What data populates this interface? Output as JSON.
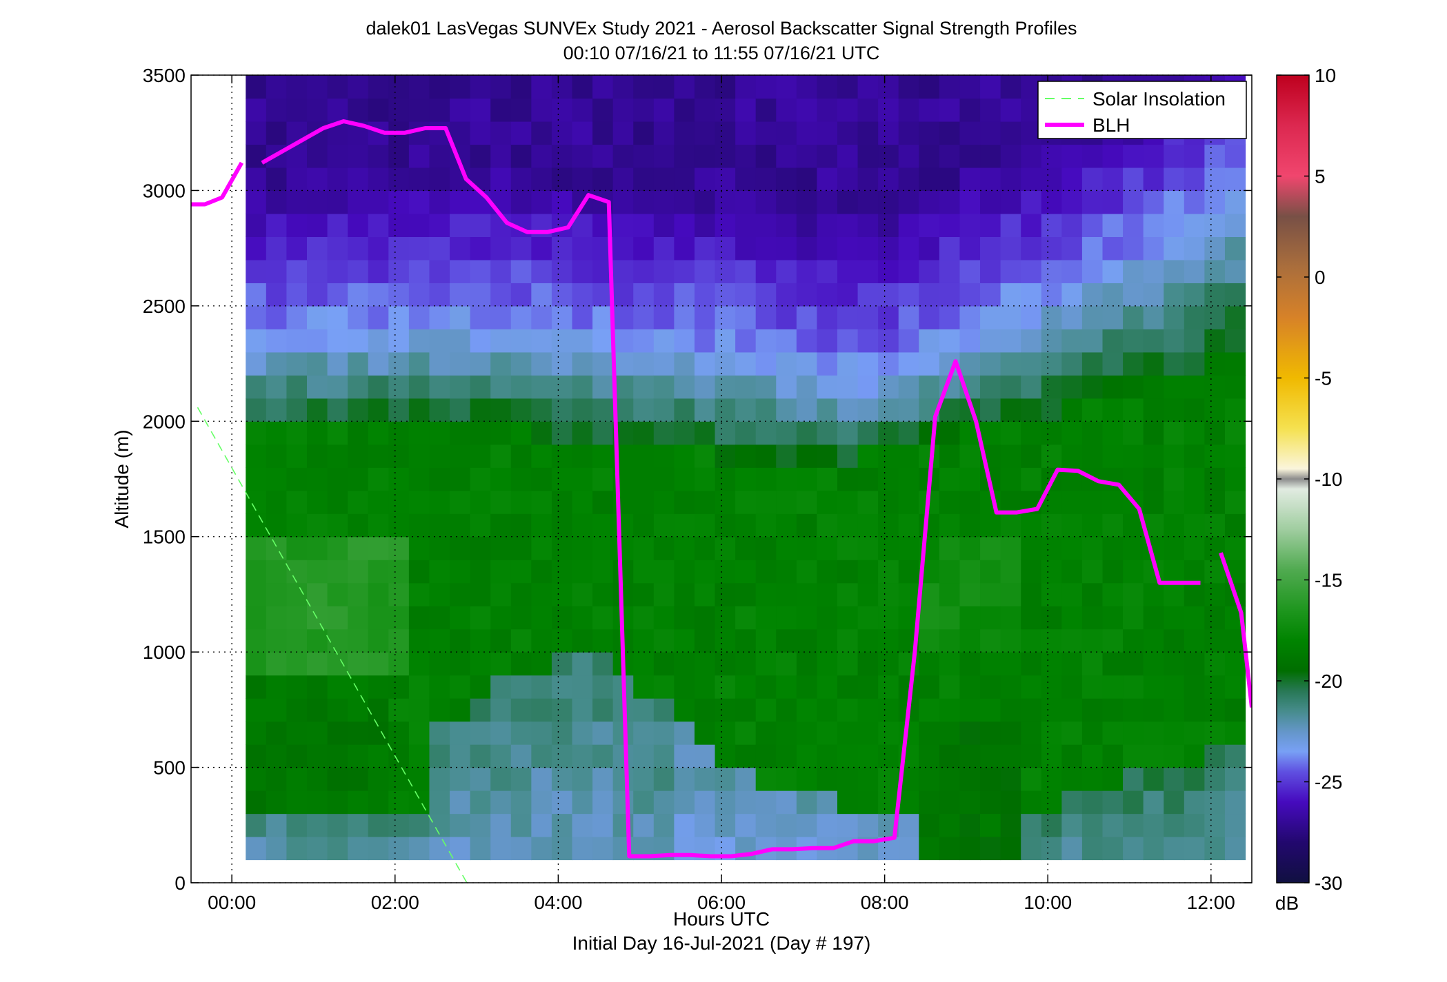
{
  "chart_data": {
    "type": "heatmap",
    "title": "dalek01 LasVegas SUNVEx Study 2021 - Aerosol Backscatter Signal Strength Profiles",
    "subtitle": "00:10 07/16/21 to 11:55 07/16/21  UTC",
    "xlabel": "Hours UTC",
    "xlabel2": "Initial Day 16-Jul-2021 (Day # 197)",
    "ylabel": "Altitude (m)",
    "xlim_hours": [
      -0.5,
      12.5
    ],
    "ylim": [
      0,
      3500
    ],
    "grid": true,
    "grid_style": "dotted",
    "x_ticks": [
      {
        "value": 0,
        "label": "00:00"
      },
      {
        "value": 2,
        "label": "02:00"
      },
      {
        "value": 4,
        "label": "04:00"
      },
      {
        "value": 6,
        "label": "06:00"
      },
      {
        "value": 8,
        "label": "08:00"
      },
      {
        "value": 10,
        "label": "10:00"
      },
      {
        "value": 12,
        "label": "12:00"
      }
    ],
    "y_ticks": [
      0,
      500,
      1000,
      1500,
      2000,
      2500,
      3000,
      3500
    ],
    "heatmap": {
      "x_range_hours": [
        0.17,
        12.42
      ],
      "y_range_m": [
        100,
        3500
      ],
      "value_unit": "dB",
      "description_levels_dB": "approx -27 (dark purple, top) to -17 (bright green, mid-levels)"
    },
    "colorbar": {
      "label": "dB",
      "range": [
        -30,
        10
      ],
      "ticks": [
        10,
        5,
        0,
        -5,
        -10,
        -15,
        -20,
        -25,
        -30
      ]
    },
    "legend": {
      "placement": "top-right",
      "entries": [
        "Solar Insolation",
        "BLH"
      ]
    },
    "series": [
      {
        "name": "BLH",
        "color": "#ff00ff",
        "segments": [
          {
            "x": [
              -0.5,
              -0.33,
              -0.12,
              0.12
            ],
            "y": [
              2940,
              2940,
              2970,
              3120
            ]
          },
          {
            "x": [
              0.37,
              0.62,
              0.87,
              1.12,
              1.37,
              1.62,
              1.87,
              2.12,
              2.37,
              2.62,
              2.87,
              3.12,
              3.37,
              3.62,
              3.87,
              4.12,
              4.37,
              4.62,
              4.87,
              5.12,
              5.37,
              5.62,
              5.87,
              6.12,
              6.37,
              6.62,
              6.87,
              7.12,
              7.37,
              7.62,
              7.87,
              8.12,
              8.37,
              8.62,
              8.87,
              9.12,
              9.37,
              9.62,
              9.87,
              10.12,
              10.37,
              10.62,
              10.87,
              11.12,
              11.37,
              11.62,
              11.87
            ],
            "y": [
              3120,
              3170,
              3220,
              3270,
              3300,
              3280,
              3250,
              3250,
              3270,
              3270,
              3050,
              2970,
              2860,
              2820,
              2820,
              2840,
              2980,
              2950,
              115,
              115,
              120,
              120,
              115,
              115,
              125,
              145,
              145,
              150,
              150,
              180,
              180,
              195,
              1000,
              2020,
              2260,
              2000,
              1605,
              1605,
              1620,
              1790,
              1785,
              1740,
              1725,
              1620,
              1300,
              1300,
              1300
            ]
          },
          {
            "x": [
              12.12,
              12.37,
              12.5
            ],
            "y": [
              1430,
              1170,
              760
            ]
          }
        ]
      },
      {
        "name": "Solar Insolation",
        "color": "#66ff66",
        "x": [
          -0.42,
          2.88
        ],
        "y": [
          2060,
          0
        ]
      }
    ]
  },
  "colors": {
    "blh": "#ff00ff",
    "solar": "#66ff66",
    "legend_border": "#000000"
  }
}
